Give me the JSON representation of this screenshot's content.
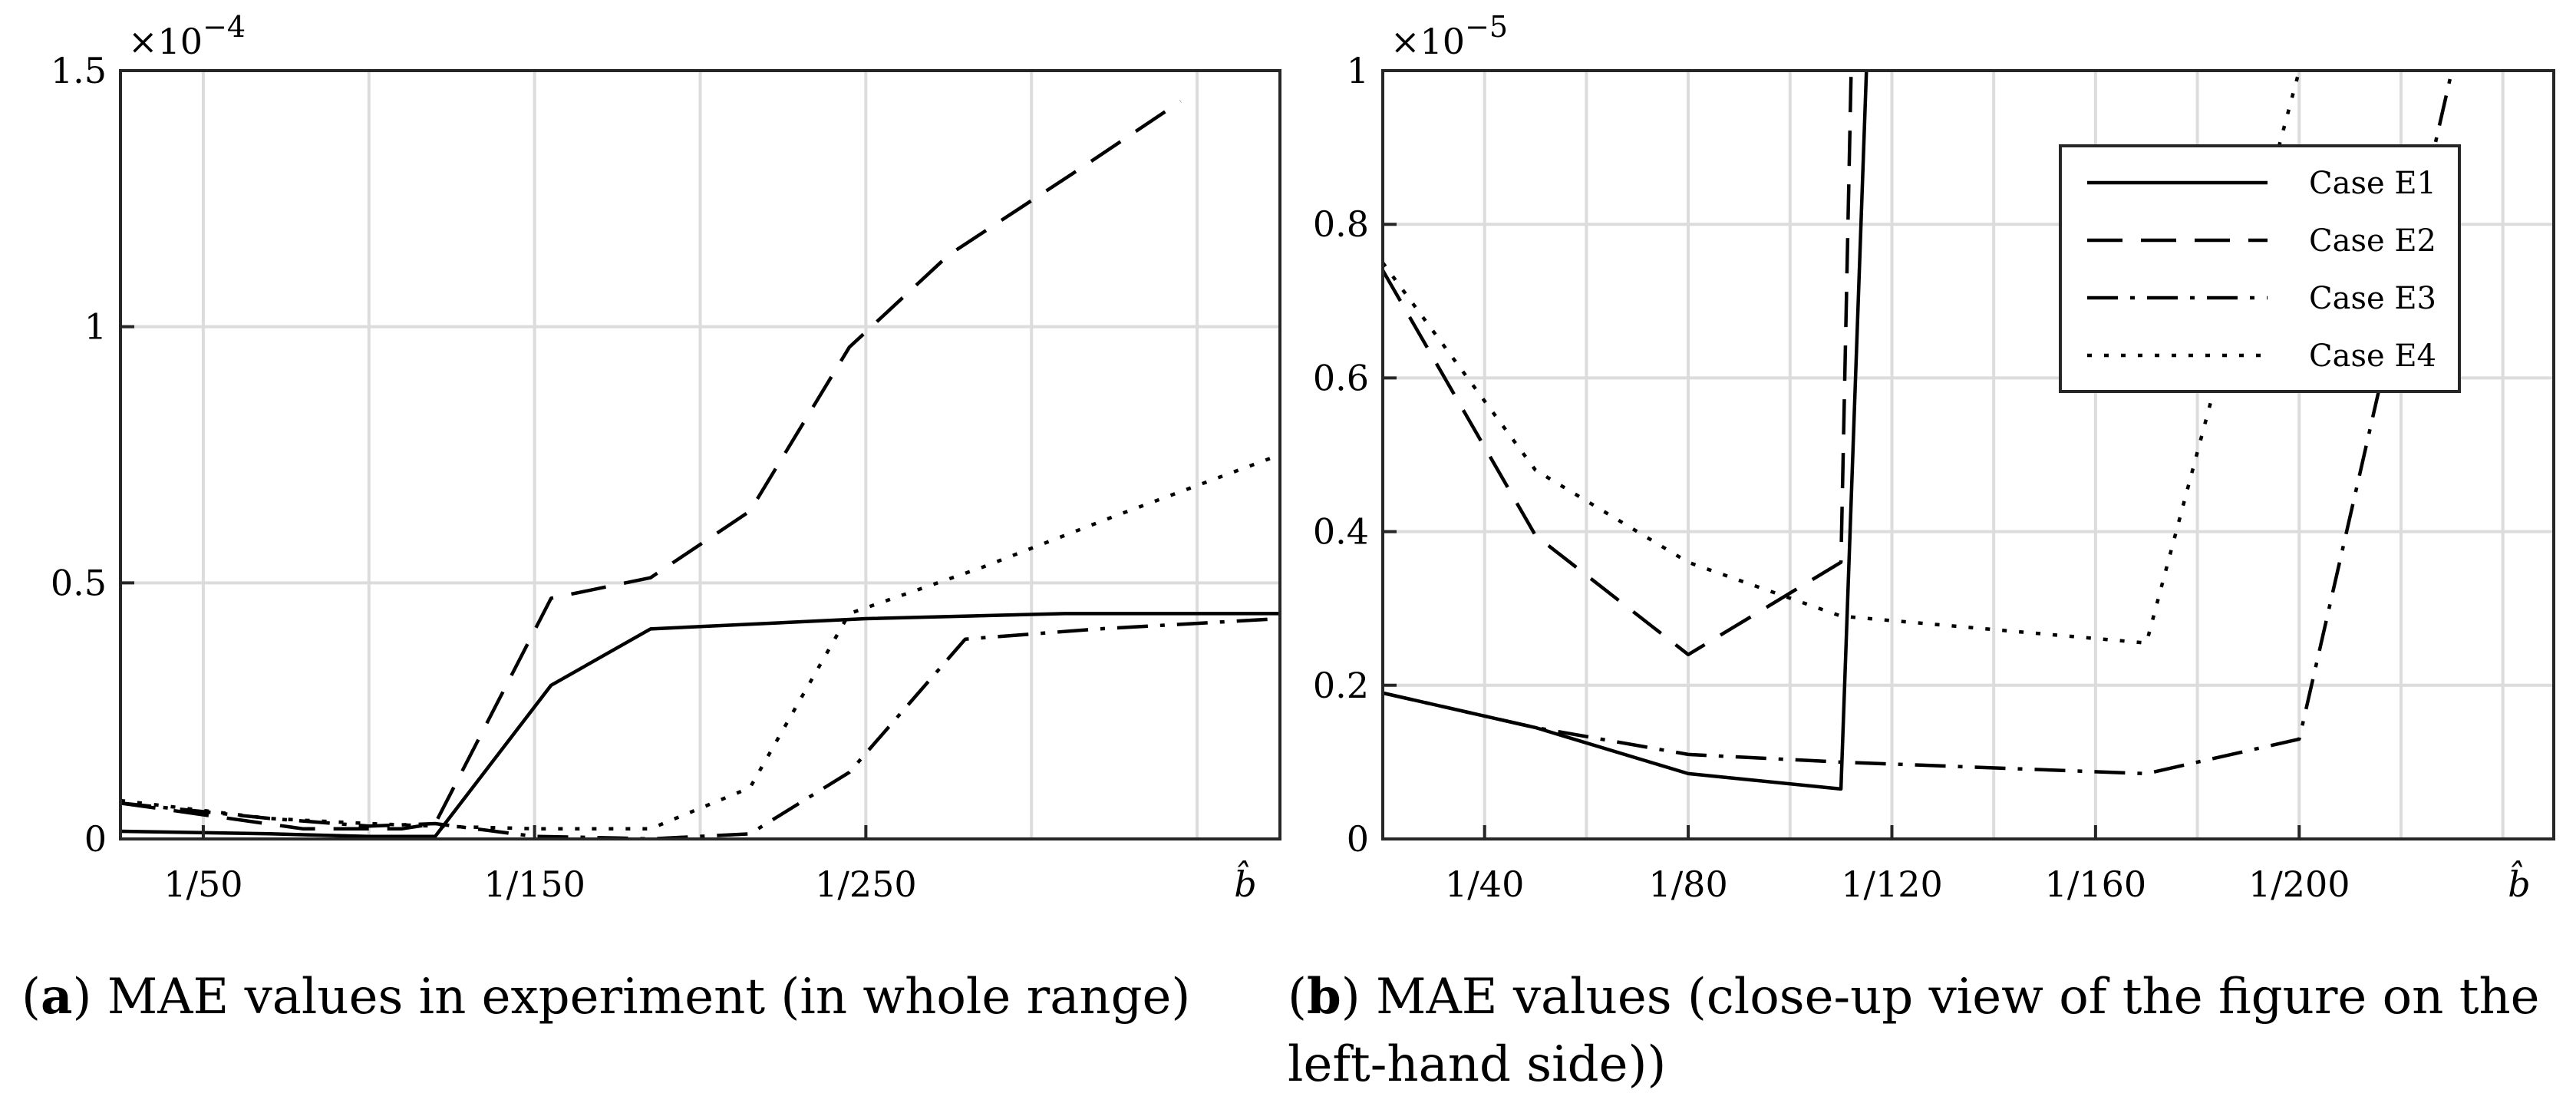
{
  "chart_data": [
    {
      "type": "line",
      "caption_label": "a",
      "caption_text": "MAE values in experiment (in whole range)",
      "xlabel": "b̂",
      "ylabel": "",
      "y_exponent": "×10−4",
      "xlim": [
        1,
        351
      ],
      "ylim": [
        0,
        1.5
      ],
      "xticks": [
        {
          "value": 26,
          "label": "1/50"
        },
        {
          "value": 126,
          "label": "1/150"
        },
        {
          "value": 226,
          "label": "1/250"
        }
      ],
      "xgrid": [
        26,
        76,
        126,
        176,
        226,
        276,
        326
      ],
      "yticks": [
        {
          "value": 0,
          "label": "0"
        },
        {
          "value": 0.5,
          "label": "0.5"
        },
        {
          "value": 1,
          "label": "1"
        },
        {
          "value": 1.5,
          "label": "1.5"
        }
      ],
      "grid": true,
      "series": [
        {
          "name": "Case E1",
          "dash": "solid",
          "x": [
            1,
            46,
            76,
            96,
            131,
            161,
            226,
            286,
            351
          ],
          "y": [
            0.015,
            0.01,
            0.005,
            0.005,
            0.3,
            0.41,
            0.43,
            0.44,
            0.44
          ]
        },
        {
          "name": "Case E2",
          "dash": "dash",
          "x": [
            1,
            56,
            86,
            96,
            131,
            161,
            191,
            221,
            251,
            291,
            321
          ],
          "y": [
            0.07,
            0.02,
            0.02,
            0.03,
            0.47,
            0.51,
            0.64,
            0.96,
            1.14,
            1.31,
            1.44
          ]
        },
        {
          "name": "Case E3",
          "dash": "dashdot",
          "x": [
            1,
            46,
            76,
            96,
            126,
            151,
            161,
            191,
            221,
            256,
            296,
            351
          ],
          "y": [
            0.07,
            0.04,
            0.025,
            0.03,
            0.005,
            0.002,
            0.0,
            0.01,
            0.13,
            0.39,
            0.41,
            0.43
          ]
        },
        {
          "name": "Case E4",
          "dash": "dot",
          "x": [
            1,
            46,
            76,
            96,
            126,
            146,
            161,
            191,
            221,
            261,
            301,
            351
          ],
          "y": [
            0.075,
            0.04,
            0.03,
            0.025,
            0.02,
            0.02,
            0.02,
            0.1,
            0.44,
            0.53,
            0.63,
            0.75
          ]
        }
      ]
    },
    {
      "type": "line",
      "caption_label": "b",
      "caption_text": "MAE values (close-up view of the figure on the left-hand side)",
      "xlabel": "b̂",
      "ylabel": "",
      "y_exponent": "×10−5",
      "xlim": [
        1,
        231
      ],
      "ylim": [
        0,
        1
      ],
      "xticks": [
        {
          "value": 21,
          "label": "1/40"
        },
        {
          "value": 61,
          "label": "1/80"
        },
        {
          "value": 101,
          "label": "1/120"
        },
        {
          "value": 141,
          "label": "1/160"
        },
        {
          "value": 181,
          "label": "1/200"
        }
      ],
      "xgrid": [
        21,
        41,
        61,
        81,
        101,
        121,
        141,
        161,
        181,
        201,
        221
      ],
      "yticks": [
        {
          "value": 0,
          "label": "0"
        },
        {
          "value": 0.2,
          "label": "0.2"
        },
        {
          "value": 0.4,
          "label": "0.4"
        },
        {
          "value": 0.6,
          "label": "0.6"
        },
        {
          "value": 0.8,
          "label": "0.8"
        },
        {
          "value": 1,
          "label": "1"
        }
      ],
      "grid": true,
      "legend_position": "top-right",
      "series": [
        {
          "name": "Case E1",
          "dash": "solid",
          "x": [
            1,
            31,
            61,
            91,
            96
          ],
          "y": [
            0.19,
            0.145,
            0.085,
            0.065,
            1.0
          ]
        },
        {
          "name": "Case E2",
          "dash": "dash",
          "x": [
            1,
            31,
            61,
            91,
            93
          ],
          "y": [
            0.74,
            0.395,
            0.24,
            0.36,
            1.0
          ]
        },
        {
          "name": "Case E3",
          "dash": "dashdot",
          "x": [
            1,
            31,
            61,
            91,
            151,
            181,
            211
          ],
          "y": [
            0.19,
            0.145,
            0.11,
            0.1,
            0.085,
            0.13,
            1.0
          ]
        },
        {
          "name": "Case E4",
          "dash": "dot",
          "x": [
            1,
            31,
            61,
            91,
            151,
            181
          ],
          "y": [
            0.75,
            0.48,
            0.36,
            0.29,
            0.255,
            1.0
          ]
        }
      ]
    }
  ]
}
